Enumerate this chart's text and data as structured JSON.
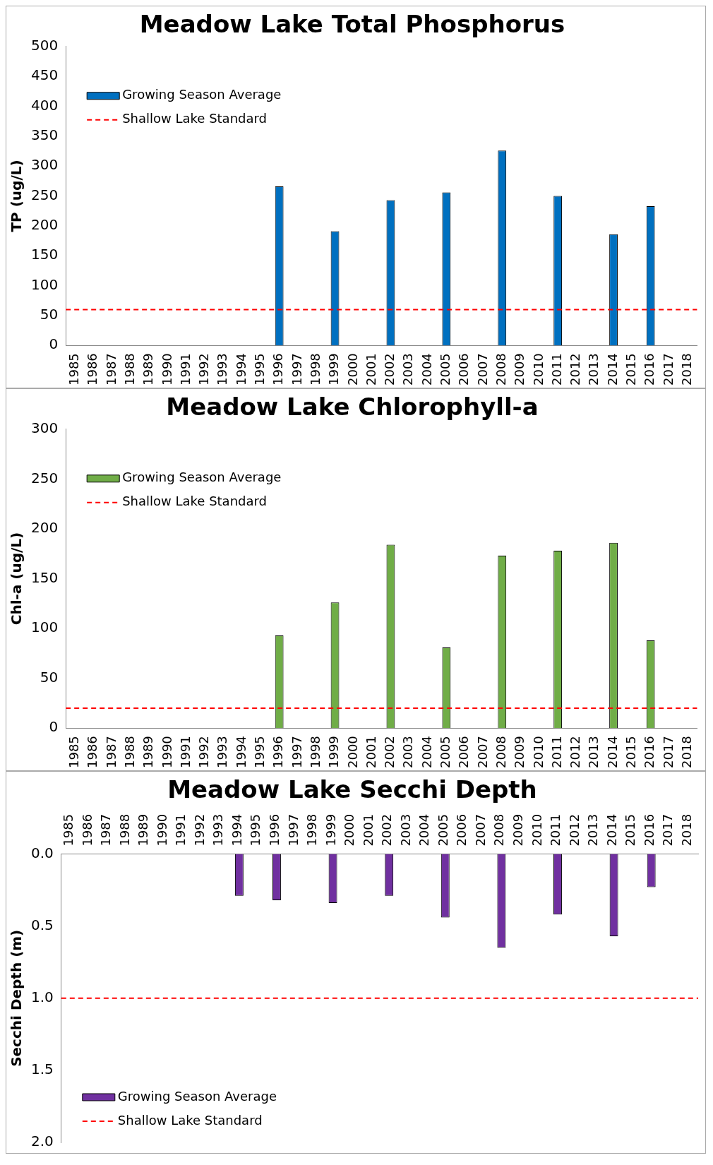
{
  "chart_data": [
    {
      "type": "bar",
      "title": "Meadow Lake Total Phosphorus",
      "ylabel": "TP (ug/L)",
      "categories": [
        "1985",
        "1986",
        "1987",
        "1988",
        "1989",
        "1990",
        "1991",
        "1992",
        "1993",
        "1994",
        "1995",
        "1996",
        "1997",
        "1998",
        "1999",
        "2000",
        "2001",
        "2002",
        "2003",
        "2004",
        "2005",
        "2006",
        "2007",
        "2008",
        "2009",
        "2010",
        "2011",
        "2012",
        "2013",
        "2014",
        "2015",
        "2016",
        "2017",
        "2018"
      ],
      "series": [
        {
          "name": "Growing Season Average",
          "color": "#0070c0",
          "values": [
            null,
            null,
            null,
            null,
            null,
            null,
            null,
            null,
            null,
            null,
            null,
            266,
            null,
            null,
            191,
            null,
            null,
            243,
            null,
            null,
            256,
            null,
            null,
            326,
            null,
            null,
            250,
            null,
            null,
            186,
            null,
            233,
            null,
            null
          ]
        }
      ],
      "ylim": [
        0,
        500
      ],
      "yticks": [
        0,
        50,
        100,
        150,
        200,
        250,
        300,
        350,
        400,
        450,
        500
      ],
      "ref_lines": [
        {
          "axis": "y",
          "value": 60,
          "label": "Shallow Lake Standard",
          "color": "#ff0000",
          "line_style": "dashed"
        }
      ],
      "legend": "top left",
      "grid": false
    },
    {
      "type": "bar",
      "title": "Meadow Lake Chlorophyll-a",
      "ylabel": "Chl-a (ug/L)",
      "categories": [
        "1985",
        "1986",
        "1987",
        "1988",
        "1989",
        "1990",
        "1991",
        "1992",
        "1993",
        "1994",
        "1995",
        "1996",
        "1997",
        "1998",
        "1999",
        "2000",
        "2001",
        "2002",
        "2003",
        "2004",
        "2005",
        "2006",
        "2007",
        "2008",
        "2009",
        "2010",
        "2011",
        "2012",
        "2013",
        "2014",
        "2015",
        "2016",
        "2017",
        "2018"
      ],
      "series": [
        {
          "name": "Growing Season Average",
          "color": "#70ad47",
          "values": [
            null,
            null,
            null,
            null,
            null,
            null,
            null,
            null,
            null,
            null,
            null,
            93,
            null,
            null,
            126,
            null,
            null,
            184,
            null,
            null,
            81,
            null,
            null,
            173,
            null,
            null,
            178,
            null,
            null,
            186,
            null,
            88,
            null,
            null
          ]
        }
      ],
      "ylim": [
        0,
        300
      ],
      "yticks": [
        0,
        50,
        100,
        150,
        200,
        250,
        300
      ],
      "ref_lines": [
        {
          "axis": "y",
          "value": 20,
          "label": "Shallow Lake Standard",
          "color": "#ff0000",
          "line_style": "dashed"
        }
      ],
      "legend": "top left",
      "grid": false
    },
    {
      "type": "bar",
      "title": "Meadow Lake Secchi Depth",
      "ylabel": "Secchi Depth (m)",
      "categories": [
        "1985",
        "1986",
        "1987",
        "1988",
        "1989",
        "1990",
        "1991",
        "1992",
        "1993",
        "1994",
        "1995",
        "1996",
        "1997",
        "1998",
        "1999",
        "2000",
        "2001",
        "2002",
        "2003",
        "2004",
        "2005",
        "2006",
        "2007",
        "2008",
        "2009",
        "2010",
        "2011",
        "2012",
        "2013",
        "2014",
        "2015",
        "2016",
        "2017",
        "2018"
      ],
      "series": [
        {
          "name": "Growing Season Average",
          "color": "#7030a0",
          "values": [
            null,
            null,
            null,
            null,
            null,
            null,
            null,
            null,
            null,
            0.29,
            null,
            0.32,
            null,
            null,
            0.34,
            null,
            null,
            0.29,
            null,
            null,
            0.44,
            null,
            null,
            0.65,
            null,
            null,
            0.42,
            null,
            null,
            0.57,
            null,
            0.23,
            null,
            null
          ]
        }
      ],
      "ylim": [
        2,
        0
      ],
      "yticks": [
        {
          "value": 0,
          "label": "0.0"
        },
        {
          "value": 0.5,
          "label": "0.5"
        },
        {
          "value": 1,
          "label": "1.0"
        },
        {
          "value": 1.5,
          "label": "1.5"
        },
        {
          "value": 2,
          "label": "2.0"
        }
      ],
      "ref_lines": [
        {
          "axis": "y",
          "value": 1,
          "label": "Shallow Lake Standard",
          "color": "#ff0000",
          "line_style": "dashed"
        }
      ],
      "legend": "bottom left",
      "grid": false
    }
  ]
}
